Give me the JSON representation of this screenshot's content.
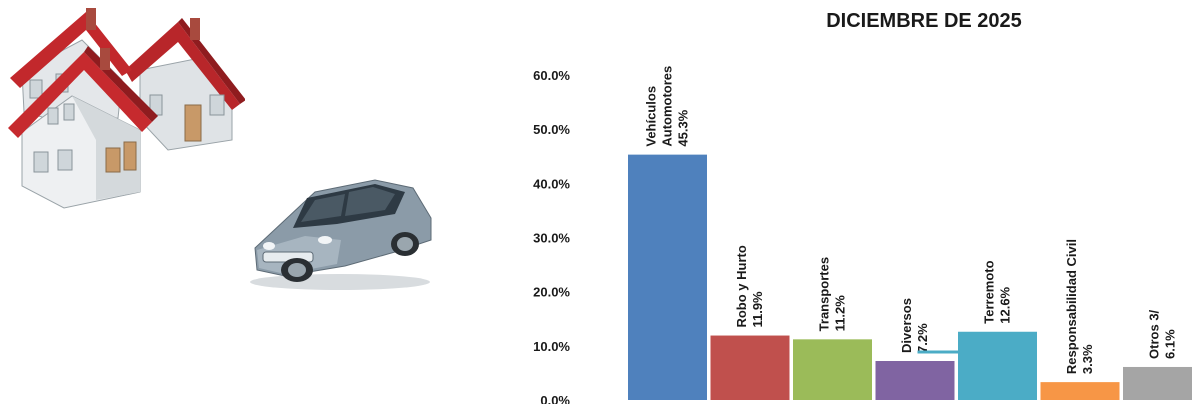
{
  "illustrations": {
    "houses": "houses-illustration",
    "car": "car-illustration"
  },
  "chart_data": {
    "type": "bar",
    "title": "DICIEMBRE DE 2025",
    "xlabel": "",
    "ylabel": "",
    "ylim": [
      0,
      60
    ],
    "y_ticks": [
      "0.0%",
      "10.0%",
      "20.0%",
      "30.0%",
      "40.0%",
      "50.0%",
      "60.0%"
    ],
    "grid": false,
    "categories": [
      [
        "Vehículos",
        "Automotores",
        "45.3%"
      ],
      [
        "Robo y Hurto",
        "11.9%"
      ],
      [
        "Transportes",
        "11.2%"
      ],
      [
        "Diversos",
        "7.2%"
      ],
      [
        "Terremoto",
        "12.6%"
      ],
      [
        "Responsabilidad Civil",
        "3.3%"
      ],
      [
        "Otros 3/",
        "6.1%"
      ]
    ],
    "values": [
      45.3,
      11.9,
      11.2,
      7.2,
      12.6,
      3.3,
      6.1
    ],
    "colors": [
      "#4F81BD",
      "#C0504D",
      "#9BBB59",
      "#8064A2",
      "#4BACC6",
      "#F79646",
      "#A5A5A5"
    ]
  }
}
